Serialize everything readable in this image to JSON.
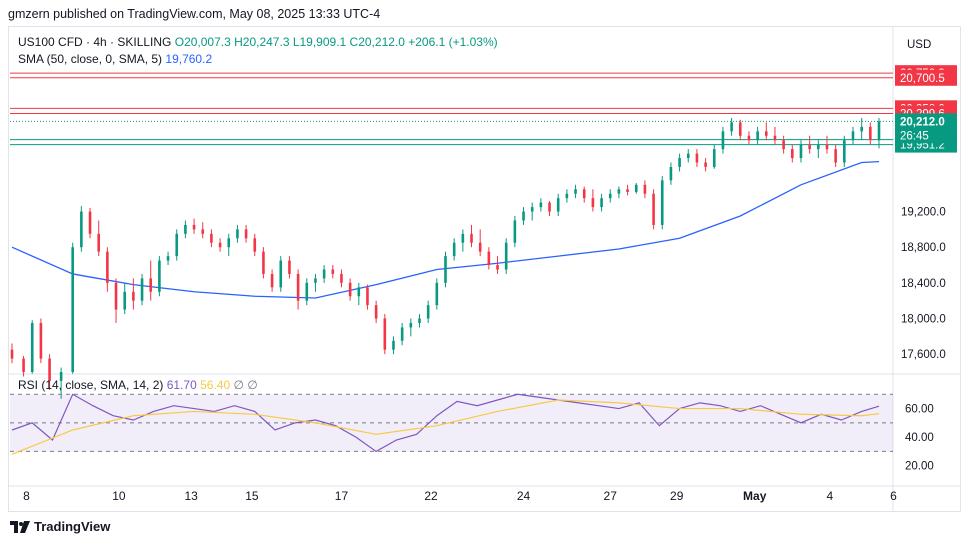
{
  "header": {
    "published": "gmzern published on TradingView.com, May 08, 2025 13:33 UTC-4"
  },
  "legend": {
    "symbol": "US100 CFD · 4h · SKILLING",
    "ohlc": "O20,007.3  H20,247.3  L19,909.1  C20,212.0  +206.1 (+1.03%)",
    "sma_label": "SMA (50, close, 0, SMA, 5)",
    "sma_value": "19,760.2"
  },
  "rsi_legend": {
    "label": "RSI (14, close, SMA, 14, 2)",
    "value": "61.70",
    "sma_value": "56.40",
    "extra": "∅ ∅"
  },
  "footer": {
    "brand": "TradingView"
  },
  "colors": {
    "up": "#089981",
    "down": "#f23645",
    "sma": "#2962ff",
    "rsi": "#7e57c2",
    "rsi_ma": "#f7c948",
    "red_level": "#f23645",
    "green_level": "#089981"
  },
  "chart_data": [
    {
      "type": "candlestick",
      "currency_label": "USD",
      "price_axis_ticks": [
        "19,200.0",
        "18,800.0",
        "18,400.0",
        "18,000.0",
        "17,600.0"
      ],
      "price_tick_values": [
        19200,
        18800,
        18400,
        18000,
        17600
      ],
      "ylim": [
        17400,
        20900
      ],
      "time_axis_labels": [
        "8",
        "10",
        "13",
        "15",
        "17",
        "22",
        "24",
        "27",
        "29",
        "May",
        "4",
        "6",
        "8"
      ],
      "time_axis_positions": [
        5,
        37,
        62,
        83,
        114,
        145,
        177,
        207,
        230,
        257,
        283,
        305,
        340
      ],
      "bar_count": 348,
      "horizontal_levels": [
        {
          "price": 20752.3,
          "label": "20,752.3",
          "color": "red"
        },
        {
          "price": 20700.5,
          "label": "20,700.5",
          "color": "red"
        },
        {
          "price": 20358.0,
          "label": "20,358.0",
          "color": "red"
        },
        {
          "price": 20299.6,
          "label": "20,299.6",
          "color": "red"
        },
        {
          "price": 20007.0,
          "label": "20,007.0",
          "color": "green"
        },
        {
          "price": 19951.2,
          "label": "19,951.2",
          "color": "green"
        }
      ],
      "last_price": {
        "price": 20212.0,
        "label": "20,212.0",
        "countdown": "26:45"
      },
      "candles": [
        [
          0,
          17650,
          17720,
          17500,
          17550
        ],
        [
          4,
          17550,
          17580,
          17350,
          17400
        ],
        [
          7,
          17400,
          17980,
          17380,
          17950
        ],
        [
          10,
          17950,
          18000,
          17500,
          17550
        ],
        [
          13,
          17550,
          17600,
          17200,
          17300
        ],
        [
          17,
          17300,
          17450,
          17100,
          17400
        ],
        [
          21,
          17400,
          18850,
          17380,
          18800
        ],
        [
          24,
          18800,
          19260,
          18750,
          19200
        ],
        [
          27,
          19200,
          19240,
          18900,
          18950
        ],
        [
          30,
          18950,
          19100,
          18700,
          18750
        ],
        [
          33,
          18750,
          18800,
          18300,
          18400
        ],
        [
          36,
          18400,
          18450,
          17950,
          18100
        ],
        [
          39,
          18100,
          18400,
          18050,
          18300
        ],
        [
          42,
          18300,
          18450,
          18100,
          18200
        ],
        [
          45,
          18200,
          18500,
          18150,
          18450
        ],
        [
          48,
          18450,
          18650,
          18200,
          18300
        ],
        [
          51,
          18300,
          18700,
          18250,
          18650
        ],
        [
          54,
          18650,
          18750,
          18600,
          18700
        ],
        [
          57,
          18700,
          19000,
          18650,
          18950
        ],
        [
          60,
          18950,
          19100,
          18900,
          19050
        ],
        [
          63,
          19050,
          19120,
          18950,
          19000
        ],
        [
          66,
          19000,
          19080,
          18900,
          18950
        ],
        [
          69,
          18950,
          19000,
          18800,
          18850
        ],
        [
          72,
          18850,
          18900,
          18750,
          18800
        ],
        [
          75,
          18800,
          18950,
          18700,
          18900
        ],
        [
          78,
          18900,
          19050,
          18850,
          19000
        ],
        [
          81,
          19000,
          19050,
          18850,
          18900
        ],
        [
          84,
          18900,
          18950,
          18700,
          18750
        ],
        [
          87,
          18750,
          18800,
          18450,
          18500
        ],
        [
          90,
          18500,
          18550,
          18300,
          18350
        ],
        [
          93,
          18350,
          18700,
          18300,
          18650
        ],
        [
          96,
          18650,
          18700,
          18450,
          18500
        ],
        [
          99,
          18500,
          18550,
          18100,
          18200
        ],
        [
          102,
          18200,
          18450,
          18150,
          18400
        ],
        [
          105,
          18400,
          18500,
          18300,
          18450
        ],
        [
          108,
          18450,
          18600,
          18400,
          18550
        ],
        [
          111,
          18550,
          18600,
          18450,
          18500
        ],
        [
          114,
          18500,
          18550,
          18350,
          18400
        ],
        [
          117,
          18400,
          18450,
          18200,
          18250
        ],
        [
          120,
          18250,
          18400,
          18150,
          18350
        ],
        [
          123,
          18350,
          18380,
          18100,
          18150
        ],
        [
          126,
          18150,
          18200,
          17950,
          18000
        ],
        [
          129,
          18000,
          18050,
          17600,
          17650
        ],
        [
          132,
          17650,
          17800,
          17600,
          17750
        ],
        [
          135,
          17750,
          17950,
          17700,
          17900
        ],
        [
          138,
          17900,
          18000,
          17800,
          17950
        ],
        [
          141,
          17950,
          18050,
          17900,
          18000
        ],
        [
          144,
          18000,
          18200,
          17950,
          18150
        ],
        [
          147,
          18150,
          18450,
          18100,
          18400
        ],
        [
          150,
          18400,
          18750,
          18350,
          18700
        ],
        [
          153,
          18700,
          18900,
          18650,
          18850
        ],
        [
          156,
          18850,
          19000,
          18750,
          18950
        ],
        [
          159,
          18950,
          19050,
          18800,
          18850
        ],
        [
          162,
          18850,
          19000,
          18700,
          18750
        ],
        [
          165,
          18750,
          18800,
          18550,
          18600
        ],
        [
          168,
          18600,
          18700,
          18500,
          18550
        ],
        [
          171,
          18550,
          18900,
          18500,
          18850
        ],
        [
          174,
          18850,
          19150,
          18800,
          19100
        ],
        [
          177,
          19100,
          19250,
          19050,
          19200
        ],
        [
          180,
          19200,
          19300,
          19100,
          19250
        ],
        [
          183,
          19250,
          19350,
          19200,
          19300
        ],
        [
          186,
          19300,
          19320,
          19150,
          19200
        ],
        [
          189,
          19200,
          19400,
          19150,
          19350
        ],
        [
          192,
          19350,
          19450,
          19300,
          19400
        ],
        [
          195,
          19400,
          19500,
          19350,
          19450
        ],
        [
          198,
          19450,
          19480,
          19300,
          19350
        ],
        [
          201,
          19350,
          19450,
          19200,
          19250
        ],
        [
          204,
          19250,
          19400,
          19200,
          19350
        ],
        [
          207,
          19350,
          19450,
          19300,
          19400
        ],
        [
          210,
          19400,
          19480,
          19350,
          19450
        ],
        [
          213,
          19450,
          19500,
          19380,
          19420
        ],
        [
          216,
          19420,
          19520,
          19400,
          19500
        ],
        [
          219,
          19500,
          19550,
          19350,
          19400
        ],
        [
          222,
          19400,
          19450,
          19000,
          19050
        ],
        [
          225,
          19050,
          19600,
          19000,
          19550
        ],
        [
          228,
          19550,
          19750,
          19500,
          19700
        ],
        [
          231,
          19700,
          19850,
          19650,
          19800
        ],
        [
          234,
          19800,
          19900,
          19750,
          19850
        ],
        [
          237,
          19850,
          19900,
          19700,
          19750
        ],
        [
          240,
          19750,
          19800,
          19650,
          19700
        ],
        [
          243,
          19700,
          19950,
          19680,
          19900
        ],
        [
          246,
          19900,
          20150,
          19850,
          20100
        ],
        [
          249,
          20100,
          20250,
          20050,
          20200
        ],
        [
          252,
          20200,
          20230,
          20000,
          20050
        ],
        [
          255,
          20050,
          20100,
          19950,
          20000
        ],
        [
          258,
          20000,
          20150,
          19950,
          20100
        ],
        [
          261,
          20100,
          20200,
          20000,
          20050
        ],
        [
          264,
          20050,
          20150,
          19950,
          20000
        ],
        [
          267,
          20000,
          20050,
          19850,
          19900
        ],
        [
          270,
          19900,
          19950,
          19750,
          19800
        ],
        [
          273,
          19800,
          20000,
          19750,
          19950
        ],
        [
          276,
          19950,
          20050,
          19850,
          19900
        ],
        [
          279,
          19900,
          20000,
          19800,
          19950
        ],
        [
          282,
          19950,
          20050,
          19850,
          19900
        ],
        [
          285,
          19900,
          19950,
          19700,
          19750
        ],
        [
          288,
          19750,
          20050,
          19700,
          20000
        ],
        [
          291,
          20000,
          20150,
          19950,
          20100
        ],
        [
          294,
          20100,
          20250,
          20000,
          20150
        ],
        [
          297,
          20150,
          20200,
          19950,
          20000
        ],
        [
          300,
          20000,
          20250,
          19909,
          20212
        ]
      ],
      "sma_points": [
        [
          0,
          18800
        ],
        [
          21,
          18500
        ],
        [
          42,
          18380
        ],
        [
          63,
          18300
        ],
        [
          84,
          18250
        ],
        [
          105,
          18230
        ],
        [
          126,
          18380
        ],
        [
          147,
          18550
        ],
        [
          168,
          18620
        ],
        [
          189,
          18700
        ],
        [
          210,
          18780
        ],
        [
          231,
          18900
        ],
        [
          252,
          19150
        ],
        [
          273,
          19500
        ],
        [
          294,
          19750
        ],
        [
          300,
          19760
        ]
      ],
      "rsi": {
        "ylim": [
          10,
          80
        ],
        "ticks": [
          "60.00",
          "40.00",
          "20.00"
        ],
        "tick_values": [
          60,
          40,
          20
        ],
        "band": [
          30,
          70
        ],
        "mid": 50,
        "values": [
          [
            0,
            45
          ],
          [
            7,
            50
          ],
          [
            14,
            38
          ],
          [
            21,
            70
          ],
          [
            28,
            62
          ],
          [
            35,
            55
          ],
          [
            42,
            52
          ],
          [
            49,
            58
          ],
          [
            56,
            62
          ],
          [
            63,
            60
          ],
          [
            70,
            58
          ],
          [
            77,
            62
          ],
          [
            84,
            58
          ],
          [
            91,
            45
          ],
          [
            98,
            50
          ],
          [
            105,
            52
          ],
          [
            112,
            48
          ],
          [
            119,
            40
          ],
          [
            126,
            30
          ],
          [
            133,
            38
          ],
          [
            140,
            42
          ],
          [
            147,
            55
          ],
          [
            154,
            65
          ],
          [
            161,
            62
          ],
          [
            168,
            66
          ],
          [
            175,
            70
          ],
          [
            182,
            68
          ],
          [
            189,
            66
          ],
          [
            196,
            64
          ],
          [
            203,
            62
          ],
          [
            210,
            60
          ],
          [
            217,
            64
          ],
          [
            224,
            48
          ],
          [
            231,
            60
          ],
          [
            238,
            64
          ],
          [
            245,
            62
          ],
          [
            252,
            58
          ],
          [
            259,
            62
          ],
          [
            266,
            56
          ],
          [
            273,
            50
          ],
          [
            280,
            56
          ],
          [
            287,
            52
          ],
          [
            294,
            58
          ],
          [
            300,
            61.7
          ]
        ],
        "ma_values": [
          [
            0,
            28
          ],
          [
            21,
            45
          ],
          [
            42,
            55
          ],
          [
            63,
            58
          ],
          [
            84,
            56
          ],
          [
            105,
            50
          ],
          [
            126,
            42
          ],
          [
            147,
            48
          ],
          [
            168,
            58
          ],
          [
            189,
            66
          ],
          [
            210,
            64
          ],
          [
            231,
            60
          ],
          [
            252,
            60
          ],
          [
            273,
            56
          ],
          [
            294,
            55
          ],
          [
            300,
            56.4
          ]
        ]
      }
    }
  ]
}
